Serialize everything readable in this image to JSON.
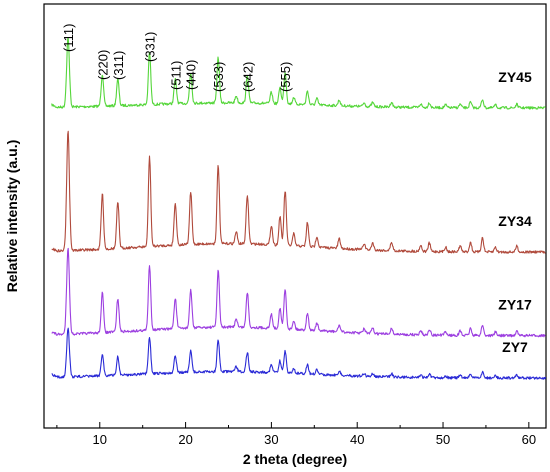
{
  "chart_data": {
    "type": "line",
    "xlabel": "2 theta (degree)",
    "ylabel": "Relative intensity (a.u.)",
    "xlim": [
      3.5,
      62
    ],
    "x_ticks": [
      10,
      20,
      30,
      40,
      50,
      60
    ],
    "grid": false,
    "legend": "none",
    "peak_labels": [
      {
        "label": "(111)",
        "x": 6.3
      },
      {
        "label": "(220)",
        "x": 10.3
      },
      {
        "label": "(311)",
        "x": 12.1
      },
      {
        "label": "(331)",
        "x": 15.8
      },
      {
        "label": "(511)",
        "x": 18.8
      },
      {
        "label": "(440)",
        "x": 20.6
      },
      {
        "label": "(533)",
        "x": 23.8
      },
      {
        "label": "(642)",
        "x": 27.2
      },
      {
        "label": "(555)",
        "x": 31.6
      }
    ],
    "peaks": [
      {
        "x": 6.3,
        "w": 0.16,
        "rel": 1.0
      },
      {
        "x": 10.3,
        "w": 0.14,
        "rel": 0.46
      },
      {
        "x": 12.1,
        "w": 0.14,
        "rel": 0.38
      },
      {
        "x": 15.8,
        "w": 0.14,
        "rel": 0.74
      },
      {
        "x": 18.8,
        "w": 0.14,
        "rel": 0.35
      },
      {
        "x": 20.6,
        "w": 0.14,
        "rel": 0.43
      },
      {
        "x": 23.8,
        "w": 0.14,
        "rel": 0.65
      },
      {
        "x": 25.9,
        "w": 0.13,
        "rel": 0.1
      },
      {
        "x": 27.2,
        "w": 0.14,
        "rel": 0.4
      },
      {
        "x": 30.0,
        "w": 0.13,
        "rel": 0.16
      },
      {
        "x": 31.0,
        "w": 0.13,
        "rel": 0.24
      },
      {
        "x": 31.6,
        "w": 0.14,
        "rel": 0.45
      },
      {
        "x": 32.6,
        "w": 0.13,
        "rel": 0.1
      },
      {
        "x": 34.2,
        "w": 0.13,
        "rel": 0.2
      },
      {
        "x": 35.3,
        "w": 0.13,
        "rel": 0.09
      },
      {
        "x": 37.9,
        "w": 0.13,
        "rel": 0.08
      },
      {
        "x": 40.8,
        "w": 0.13,
        "rel": 0.05
      },
      {
        "x": 41.8,
        "w": 0.13,
        "rel": 0.06
      },
      {
        "x": 44.0,
        "w": 0.13,
        "rel": 0.07
      },
      {
        "x": 47.4,
        "w": 0.13,
        "rel": 0.05
      },
      {
        "x": 48.4,
        "w": 0.13,
        "rel": 0.07
      },
      {
        "x": 50.3,
        "w": 0.13,
        "rel": 0.04
      },
      {
        "x": 52.0,
        "w": 0.13,
        "rel": 0.05
      },
      {
        "x": 53.2,
        "w": 0.13,
        "rel": 0.08
      },
      {
        "x": 54.6,
        "w": 0.13,
        "rel": 0.12
      },
      {
        "x": 56.1,
        "w": 0.13,
        "rel": 0.04
      },
      {
        "x": 58.6,
        "w": 0.13,
        "rel": 0.05
      }
    ],
    "series": [
      {
        "name": "ZY45",
        "color": "#55d63a",
        "baseline": 0.245,
        "scale": 0.165,
        "hump": 0.012
      },
      {
        "name": "ZY34",
        "color": "#b04a3c",
        "baseline": 0.585,
        "scale": 0.285,
        "hump": 0.02
      },
      {
        "name": "ZY17",
        "color": "#9c3fe0",
        "baseline": 0.782,
        "scale": 0.205,
        "hump": 0.02
      },
      {
        "name": "ZY7",
        "color": "#2a2ad6",
        "baseline": 0.882,
        "scale": 0.115,
        "hump": 0.015
      }
    ]
  }
}
